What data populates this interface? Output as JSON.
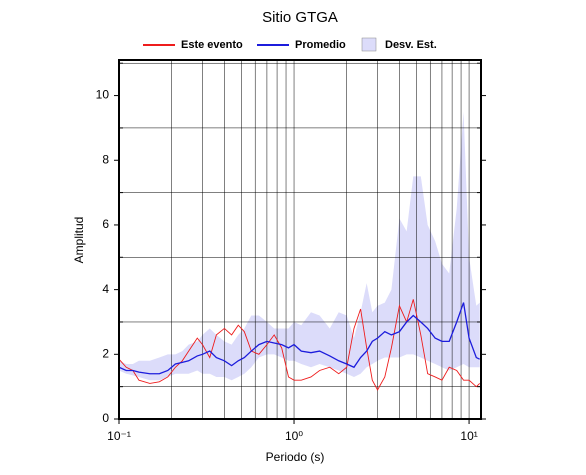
{
  "chart_data": {
    "type": "line",
    "title": "Sitio GTGA",
    "x_label": "Periodo (s)",
    "y_label": "Amplitud",
    "xscale": "log",
    "xlim": [
      0.1,
      11.7
    ],
    "ylim": [
      0,
      11.1
    ],
    "xticks": [
      {
        "value": 0.1,
        "label": "10⁻¹"
      },
      {
        "value": 1,
        "label": "10⁰"
      },
      {
        "value": 10,
        "label": "10¹"
      }
    ],
    "xgrid": [
      0.2,
      0.3,
      0.4,
      0.5,
      0.6,
      0.7,
      0.8,
      0.9,
      2,
      3,
      4,
      5,
      6,
      7,
      8,
      9
    ],
    "yticks": [
      0,
      2,
      4,
      6,
      8,
      10
    ],
    "ygrid": [
      1,
      3,
      5,
      7,
      9,
      11
    ],
    "x": [
      0.1,
      0.11,
      0.12,
      0.13,
      0.15,
      0.17,
      0.19,
      0.21,
      0.23,
      0.25,
      0.28,
      0.3,
      0.33,
      0.36,
      0.4,
      0.44,
      0.48,
      0.52,
      0.57,
      0.63,
      0.7,
      0.77,
      0.85,
      0.93,
      1.0,
      1.1,
      1.25,
      1.4,
      1.6,
      1.8,
      2.0,
      2.2,
      2.4,
      2.6,
      2.8,
      3.0,
      3.3,
      3.6,
      4.0,
      4.4,
      4.8,
      5.3,
      5.8,
      6.4,
      7.0,
      7.7,
      8.5,
      9.3,
      10,
      11,
      11.5
    ],
    "band": {
      "name": "Desv. Est.",
      "color": "#dcdcfa",
      "lower": [
        1.5,
        1.4,
        1.35,
        1.3,
        1.2,
        1.2,
        1.3,
        1.4,
        1.4,
        1.4,
        1.5,
        1.4,
        1.4,
        1.3,
        1.3,
        1.2,
        1.3,
        1.4,
        1.6,
        1.9,
        2.0,
        2.0,
        1.9,
        1.8,
        1.8,
        1.7,
        1.6,
        1.7,
        1.6,
        1.5,
        1.4,
        1.3,
        1.4,
        1.6,
        1.7,
        1.8,
        1.9,
        1.9,
        1.9,
        2.0,
        2.0,
        1.9,
        1.8,
        1.7,
        1.6,
        1.5,
        1.6,
        1.7,
        1.6,
        1.6,
        1.6
      ],
      "upper": [
        1.8,
        1.7,
        1.7,
        1.8,
        1.8,
        1.9,
        2.0,
        2.0,
        2.1,
        2.3,
        2.4,
        2.6,
        2.8,
        2.6,
        2.4,
        2.3,
        2.6,
        2.8,
        3.2,
        3.2,
        3.0,
        2.8,
        2.8,
        2.8,
        3.0,
        2.9,
        3.3,
        3.2,
        2.8,
        3.3,
        3.2,
        2.5,
        3.3,
        4.2,
        3.3,
        3.5,
        3.6,
        4.0,
        6.2,
        5.8,
        7.5,
        7.5,
        6.0,
        5.5,
        4.8,
        4.5,
        6.5,
        9.5,
        5.0,
        3.5,
        3.6
      ]
    },
    "series": [
      {
        "name": "Este evento",
        "color": "#ee1c1c",
        "values": [
          1.85,
          1.6,
          1.5,
          1.2,
          1.1,
          1.15,
          1.3,
          1.6,
          1.8,
          2.1,
          2.5,
          2.3,
          1.9,
          2.6,
          2.8,
          2.6,
          2.9,
          2.7,
          2.1,
          2.0,
          2.3,
          2.6,
          2.2,
          1.3,
          1.2,
          1.2,
          1.3,
          1.5,
          1.6,
          1.4,
          1.6,
          2.8,
          3.4,
          2.2,
          1.2,
          0.9,
          1.3,
          2.2,
          3.5,
          3.0,
          3.7,
          2.6,
          1.4,
          1.3,
          1.2,
          1.6,
          1.5,
          1.2,
          1.2,
          1.0,
          1.1
        ]
      },
      {
        "name": "Promedio",
        "color": "#1c1cdc",
        "values": [
          1.6,
          1.5,
          1.5,
          1.45,
          1.4,
          1.4,
          1.5,
          1.7,
          1.75,
          1.8,
          1.95,
          2.0,
          2.1,
          1.9,
          1.8,
          1.65,
          1.8,
          1.9,
          2.1,
          2.3,
          2.4,
          2.35,
          2.3,
          2.2,
          2.3,
          2.1,
          2.05,
          2.1,
          1.95,
          1.8,
          1.7,
          1.6,
          1.9,
          2.1,
          2.4,
          2.5,
          2.7,
          2.6,
          2.7,
          3.0,
          3.2,
          3.0,
          2.8,
          2.5,
          2.4,
          2.4,
          3.0,
          3.6,
          2.5,
          1.9,
          1.85
        ]
      }
    ]
  }
}
